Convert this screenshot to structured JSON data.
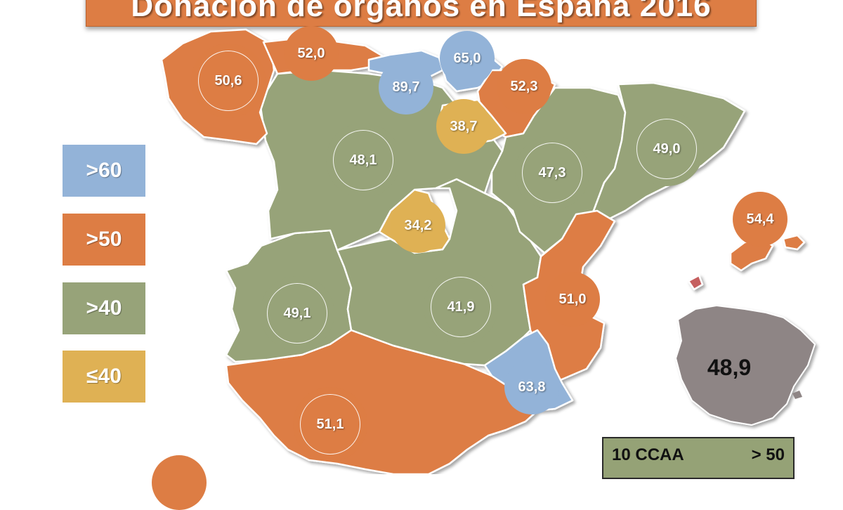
{
  "title": "Donación de órganos en España 2016",
  "colors": {
    "blue": "#93b3d8",
    "orange": "#dd7d44",
    "green": "#97a379",
    "yellow": "#dfb154",
    "grey": "#8e8585",
    "border": "#ffffff"
  },
  "legend": [
    {
      "label": ">60",
      "color": "#93b3d8"
    },
    {
      "label": ">50",
      "color": "#dd7d44"
    },
    {
      "label": ">40",
      "color": "#97a379"
    },
    {
      "label": "≤40",
      "color": "#dfb154"
    }
  ],
  "regions": [
    {
      "value": "50,6",
      "category": ">50"
    },
    {
      "value": "52,0",
      "category": ">50"
    },
    {
      "value": "89,7",
      "category": ">60"
    },
    {
      "value": "65,0",
      "category": ">60"
    },
    {
      "value": "52,3",
      "category": ">50"
    },
    {
      "value": "38,7",
      "category": "≤40"
    },
    {
      "value": "48,1",
      "category": ">40"
    },
    {
      "value": "47,3",
      "category": ">40"
    },
    {
      "value": "49,0",
      "category": ">40"
    },
    {
      "value": "34,2",
      "category": "≤40"
    },
    {
      "value": "49,1",
      "category": ">40"
    },
    {
      "value": "41,9",
      "category": ">40"
    },
    {
      "value": "51,0",
      "category": ">50"
    },
    {
      "value": "54,4",
      "category": ">50"
    },
    {
      "value": "63,8",
      "category": ">60"
    },
    {
      "value": "51,1",
      "category": ">50"
    }
  ],
  "national": {
    "value": "48,9"
  },
  "summary": {
    "count": "10 CCAA",
    "threshold": "> 50"
  }
}
